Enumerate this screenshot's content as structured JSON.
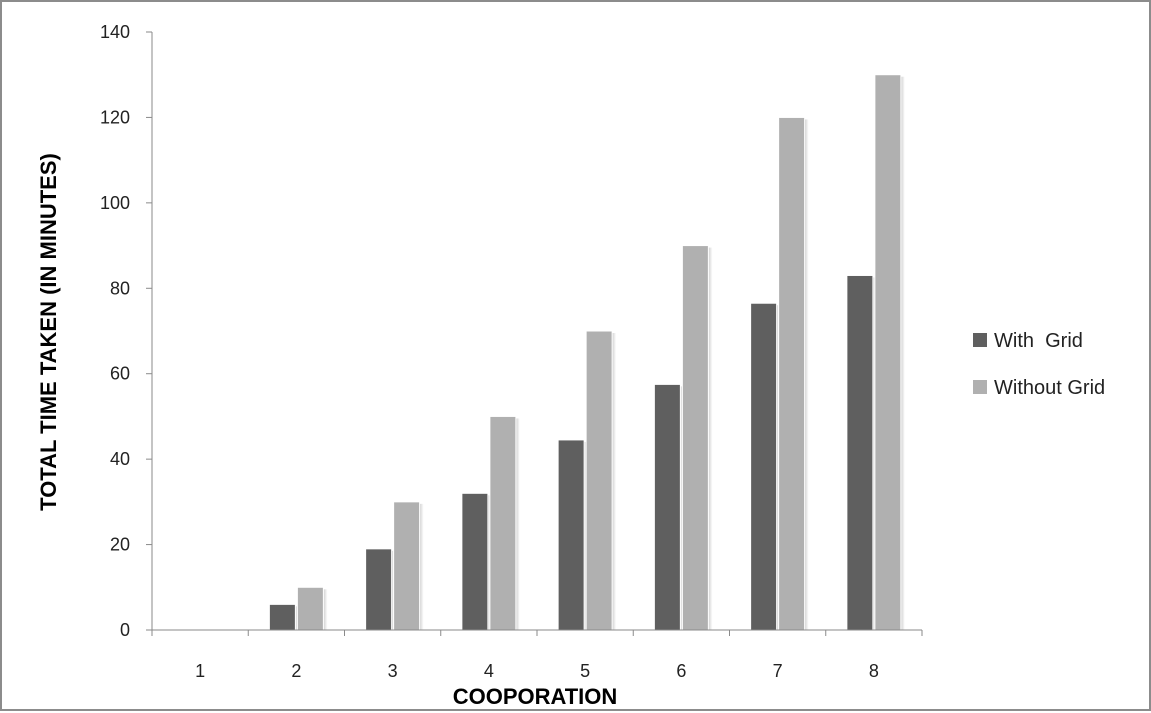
{
  "chart_data": {
    "type": "bar",
    "title": "",
    "xlabel": "COOPORATION",
    "ylabel": "TOTAL TIME TAKEN (IN MINUTES)",
    "categories": [
      "1",
      "2",
      "3",
      "4",
      "5",
      "6",
      "7",
      "8"
    ],
    "ylim": [
      0,
      140
    ],
    "yticks": [
      "0",
      "20",
      "40",
      "60",
      "80",
      "100",
      "120",
      "140"
    ],
    "grid": false,
    "legend_position": "right",
    "series": [
      {
        "name": "With  Grid",
        "color": "#5f5f5f",
        "values": [
          0,
          6,
          19,
          32,
          44.5,
          57.5,
          76.5,
          83
        ]
      },
      {
        "name": "Without Grid",
        "color": "#b0b0b0",
        "values": [
          0,
          10,
          30,
          50,
          70,
          90,
          120,
          130
        ]
      }
    ]
  }
}
